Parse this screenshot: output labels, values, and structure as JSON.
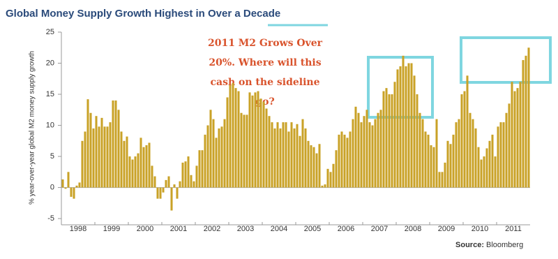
{
  "chart_data": {
    "type": "bar",
    "title": "Global Money Supply Growth Highest in Over a Decade",
    "y_label": "% year-over-year global M2 money supply growth",
    "annotation": [
      "2011 M2 Grows Over",
      "20%.  Where will this",
      "cash on the sideline",
      "go?"
    ],
    "source_label": "Source:",
    "source": "Bloomberg",
    "color": "#c9a227",
    "categories": [
      null,
      null,
      null,
      null,
      null,
      null,
      "1998",
      null,
      null,
      null,
      null,
      null,
      null,
      null,
      null,
      null,
      null,
      null,
      "1999",
      null,
      null,
      null,
      null,
      null,
      null,
      null,
      null,
      null,
      null,
      null,
      "2000",
      null,
      null,
      null,
      null,
      null,
      null,
      null,
      null,
      null,
      null,
      null,
      "2001",
      null,
      null,
      null,
      null,
      null,
      null,
      null,
      null,
      null,
      null,
      null,
      "2002",
      null,
      null,
      null,
      null,
      null,
      null,
      null,
      null,
      null,
      null,
      null,
      "2003",
      null,
      null,
      null,
      null,
      null,
      null,
      null,
      null,
      null,
      null,
      null,
      "2004",
      null,
      null,
      null,
      null,
      null,
      null,
      null,
      null,
      null,
      null,
      null,
      "2005",
      null,
      null,
      null,
      null,
      null,
      null,
      null,
      null,
      null,
      null,
      null,
      "2006",
      null,
      null,
      null,
      null,
      null,
      null,
      null,
      null,
      null,
      null,
      null,
      "2007",
      null,
      null,
      null,
      null,
      null,
      null,
      null,
      null,
      null,
      null,
      null,
      "2008",
      null,
      null,
      null,
      null,
      null,
      null,
      null,
      null,
      null,
      null,
      null,
      "2009",
      null,
      null,
      null,
      null,
      null,
      null,
      null,
      null,
      null,
      null,
      null,
      "2010",
      null,
      null,
      null,
      null,
      null,
      null,
      null,
      null,
      null,
      null,
      null,
      "2011",
      null,
      null,
      null,
      null,
      null
    ],
    "values": [
      1.3,
      -0.2,
      2.5,
      -1.5,
      -1.8,
      0.3,
      0.8,
      7.5,
      9,
      14.2,
      12,
      9.5,
      11.5,
      9.8,
      11.2,
      9.8,
      9.8,
      10.5,
      14,
      14,
      12.5,
      9,
      7.5,
      8.2,
      5,
      4.5,
      5,
      5.5,
      8,
      6.5,
      6.8,
      7.2,
      3.5,
      1.8,
      -1.8,
      -1.8,
      -0.8,
      1.2,
      1.8,
      -3.7,
      0.5,
      -1.8,
      1,
      4,
      4.2,
      5,
      2,
      1,
      3.5,
      6,
      6,
      8.5,
      10,
      12.5,
      11,
      8,
      9.5,
      9.8,
      11,
      14.5,
      16.5,
      16.8,
      16,
      15.5,
      12,
      11.7,
      11.7,
      15.3,
      14.8,
      15.3,
      15.5,
      14.3,
      13.8,
      12.7,
      11.5,
      10.5,
      9.5,
      10.5,
      9.5,
      10.5,
      10.5,
      9,
      10.5,
      9.5,
      10.2,
      8.3,
      11,
      9.5,
      7.5,
      6.8,
      6.5,
      5.5,
      7,
      0.3,
      0.5,
      3,
      2.5,
      3.8,
      6,
      8.5,
      9,
      8.5,
      8,
      9,
      11,
      13,
      12,
      10.5,
      11.5,
      12.5,
      10.5,
      10,
      11,
      12,
      12.5,
      15.5,
      16,
      15,
      15,
      17,
      19,
      19.5,
      21.2,
      19.5,
      20,
      20,
      18,
      15,
      12,
      11,
      9,
      8.5,
      6.8,
      6.5,
      11,
      2.5,
      2.5,
      4,
      7.5,
      7,
      8.5,
      10.5,
      11,
      15,
      15.5,
      18,
      12,
      11,
      9.5,
      6.5,
      4.5,
      5,
      6.3,
      7.5,
      8.5,
      5,
      9.8,
      10.5,
      10.5,
      12,
      13.5,
      17,
      15.5,
      16,
      17,
      20.5,
      21.2,
      22.5
    ],
    "ylim": [
      -6,
      25
    ],
    "yticks": [
      -5,
      0,
      5,
      10,
      15,
      20,
      25
    ]
  }
}
